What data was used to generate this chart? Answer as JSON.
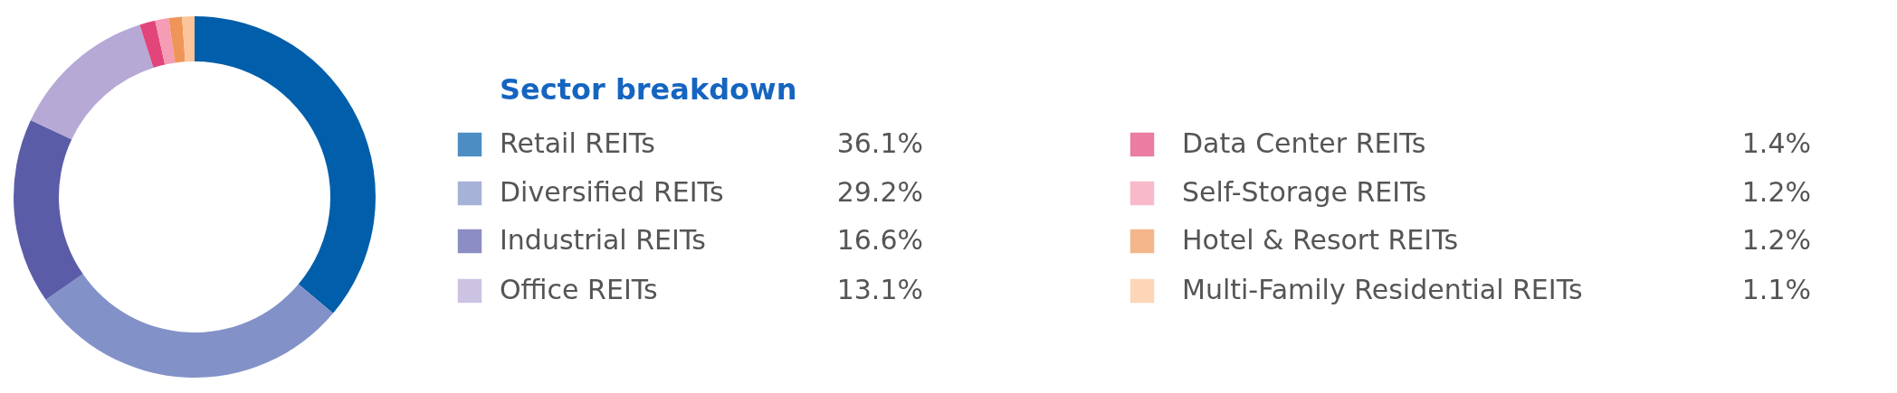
{
  "chart_data": {
    "type": "donut",
    "title": "Sector breakdown",
    "categories": [
      "Retail REITs",
      "Diversified REITs",
      "Industrial REITs",
      "Office REITs",
      "Data Center REITs",
      "Self-Storage REITs",
      "Hotel & Resort REITs",
      "Multi-Family Residential REITs"
    ],
    "values": [
      36.1,
      29.2,
      16.6,
      13.1,
      1.4,
      1.2,
      1.2,
      1.1
    ],
    "colors": [
      "#005eaa",
      "#8292c8",
      "#5b5ca8",
      "#b6a9d6",
      "#e2457a",
      "#f59db4",
      "#f0955a",
      "#fcc49a"
    ],
    "value_labels": [
      "36.1%",
      "29.2%",
      "16.6%",
      "13.1%",
      "1.4%",
      "1.2%",
      "1.2%",
      "1.1%"
    ],
    "legend": "right"
  }
}
